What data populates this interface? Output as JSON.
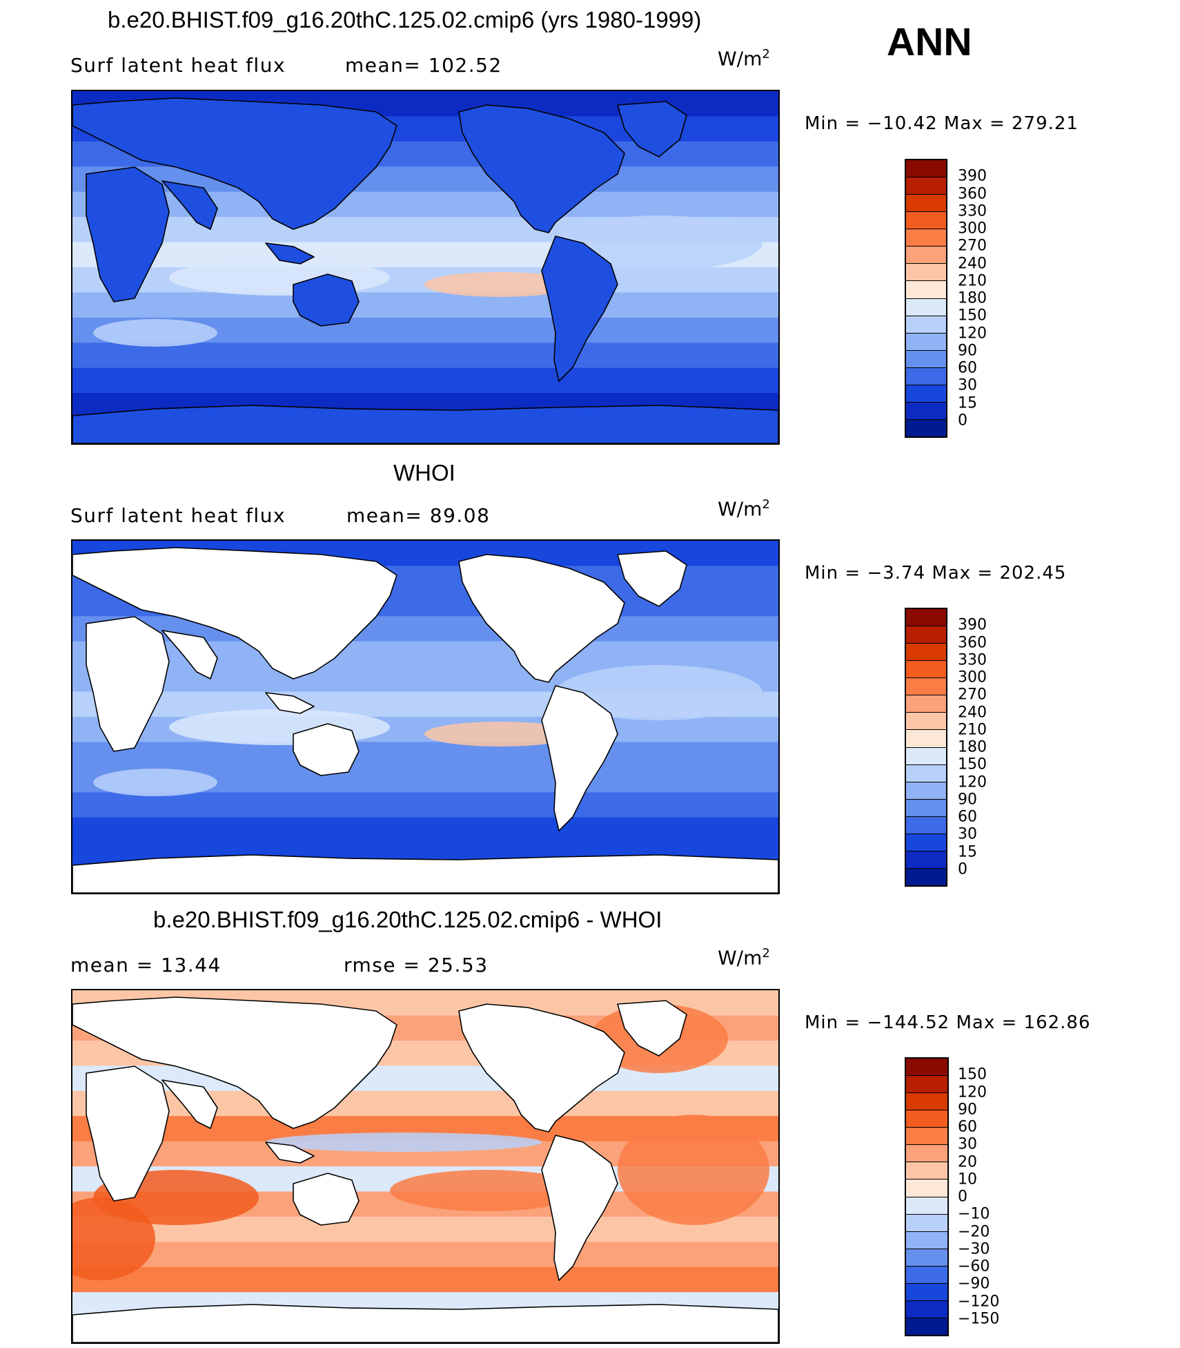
{
  "ann_label": "ANN",
  "units_text": "W/m",
  "units_exp": "2",
  "panels": [
    {
      "title": "b.e20.BHIST.f09_g16.20thC.125.02.cmip6 (yrs 1980-1999)",
      "left_label": "Surf  latent  heat  flux",
      "right_label": "mean=  102.52",
      "minmax": "Min  =  −10.42  Max  =  279.21",
      "colorbar": {
        "labels": [
          "390",
          "360",
          "330",
          "300",
          "270",
          "240",
          "210",
          "180",
          "150",
          "120",
          "90",
          "60",
          "30",
          "15",
          "0"
        ],
        "colors": [
          "#8b0a00",
          "#b81e00",
          "#d83a00",
          "#f25c1e",
          "#fa7d45",
          "#fba27a",
          "#fcc6a6",
          "#fde8d8",
          "#dbe9fb",
          "#b8d1fa",
          "#8fb3f5",
          "#6690ee",
          "#3d6ae6",
          "#1847de",
          "#0b2bc2",
          "#001b8f"
        ]
      },
      "map": {
        "type": "field",
        "ocean_bands": [
          "#0b2bc2",
          "#1b47de",
          "#3d6ae6",
          "#6690ee",
          "#8fb3f5",
          "#b8d1fa",
          "#dbe9fb",
          "#b8d1fa",
          "#8fb3f5",
          "#6690ee",
          "#3d6ae6",
          "#1b47de",
          "#0b2bc2",
          "#001b8f"
        ],
        "land_color": "#1e4fe0",
        "land_fill": true
      }
    },
    {
      "title": "WHOI",
      "left_label": "Surf  latent  heat  flux",
      "right_label": "mean=   89.08",
      "minmax": "Min  =    −3.74  Max  =  202.45",
      "colorbar": {
        "labels": [
          "390",
          "360",
          "330",
          "300",
          "270",
          "240",
          "210",
          "180",
          "150",
          "120",
          "90",
          "60",
          "30",
          "15",
          "0"
        ],
        "colors": [
          "#8b0a00",
          "#b81e00",
          "#d83a00",
          "#f25c1e",
          "#fa7d45",
          "#fba27a",
          "#fcc6a6",
          "#fde8d8",
          "#dbe9fb",
          "#b8d1fa",
          "#8fb3f5",
          "#6690ee",
          "#3d6ae6",
          "#1847de",
          "#0b2bc2",
          "#001b8f"
        ]
      },
      "map": {
        "type": "field",
        "ocean_bands": [
          "#1847de",
          "#3d6ae6",
          "#3d6ae6",
          "#6690ee",
          "#8fb3f5",
          "#8fb3f5",
          "#b8d1fa",
          "#8fb3f5",
          "#6690ee",
          "#6690ee",
          "#3d6ae6",
          "#1847de",
          "#1847de",
          "#ffffff"
        ],
        "land_color": "#ffffff",
        "land_fill": false
      }
    },
    {
      "title": "b.e20.BHIST.f09_g16.20thC.125.02.cmip6 - WHOI",
      "left_label": "mean  =    13.44",
      "right_label": "rmse  =    25.53",
      "minmax": "Min  =  −144.52  Max  =  162.86",
      "colorbar": {
        "labels": [
          "150",
          "120",
          "90",
          "60",
          "30",
          "20",
          "10",
          "0",
          "−10",
          "−20",
          "−30",
          "−60",
          "−90",
          "−120",
          "−150"
        ],
        "colors": [
          "#8b0a00",
          "#b81e00",
          "#d83a00",
          "#f25c1e",
          "#fa7d45",
          "#fba27a",
          "#fcc6a6",
          "#fde8d8",
          "#dbe9fb",
          "#b8d1fa",
          "#8fb3f5",
          "#6690ee",
          "#3d6ae6",
          "#1847de",
          "#0b2bc2",
          "#001b8f"
        ]
      },
      "map": {
        "type": "diff",
        "ocean_bands": [
          "#fcc6a6",
          "#fba27a",
          "#fcc6a6",
          "#dbe9fb",
          "#fcc6a6",
          "#fa7d45",
          "#fba27a",
          "#dbe9fb",
          "#fba27a",
          "#fcc6a6",
          "#fba27a",
          "#fa7d45",
          "#dbe9fb",
          "#fcc6a6"
        ],
        "land_color": "#ffffff",
        "land_fill": false
      }
    }
  ]
}
